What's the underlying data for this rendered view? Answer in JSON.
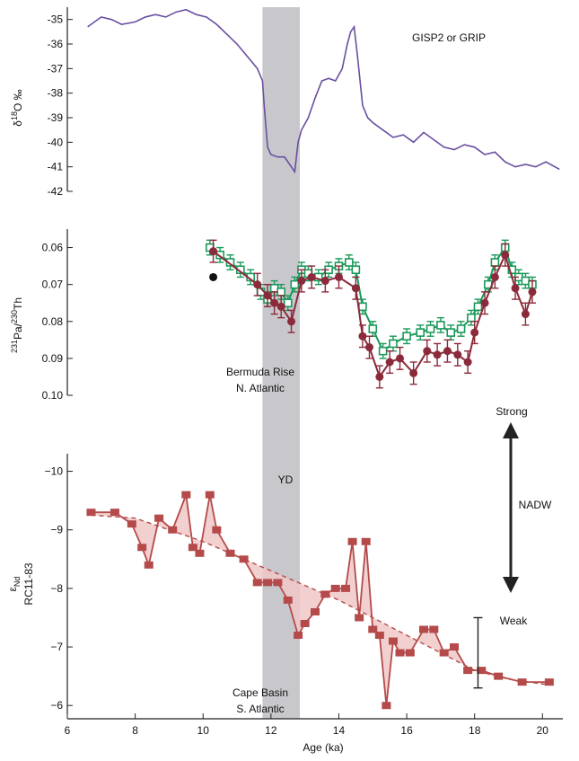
{
  "chart_data": [
    {
      "type": "line",
      "panel": "top",
      "ylabel_main": "δ",
      "ylabel_sup": "18",
      "ylabel_rest": "O ‰",
      "yticks": [
        -35,
        -36,
        -37,
        -38,
        -39,
        -40,
        -41,
        -42
      ],
      "ylim": [
        -34.5,
        -42.0
      ],
      "annotation": "GISP2 or GRIP",
      "color": "#6a4fa0",
      "series": [
        {
          "x": [
            6.6,
            6.8,
            7.0,
            7.3,
            7.6,
            8.0,
            8.3,
            8.6,
            8.9,
            9.2,
            9.5,
            9.8,
            10.1,
            10.4,
            10.7,
            11.0,
            11.3,
            11.6,
            11.75,
            11.8,
            11.9,
            12.0,
            12.2,
            12.4,
            12.6,
            12.7,
            12.8,
            12.9,
            13.1,
            13.3,
            13.5,
            13.7,
            13.9,
            14.1,
            14.25,
            14.35,
            14.45,
            14.55,
            14.7,
            14.85,
            15.0,
            15.3,
            15.6,
            15.9,
            16.2,
            16.5,
            16.8,
            17.1,
            17.4,
            17.7,
            18.0,
            18.3,
            18.6,
            18.9,
            19.2,
            19.5,
            19.8,
            20.1,
            20.5
          ],
          "y": [
            -35.3,
            -35.1,
            -34.9,
            -35.0,
            -35.2,
            -35.1,
            -34.9,
            -34.8,
            -34.9,
            -34.7,
            -34.6,
            -34.8,
            -34.9,
            -35.2,
            -35.6,
            -36.0,
            -36.5,
            -37.0,
            -37.5,
            -38.5,
            -40.2,
            -40.5,
            -40.6,
            -40.6,
            -41.0,
            -41.2,
            -40.0,
            -39.5,
            -39.0,
            -38.2,
            -37.5,
            -37.4,
            -37.5,
            -37.0,
            -36.0,
            -35.5,
            -35.3,
            -36.5,
            -38.5,
            -39.0,
            -39.2,
            -39.5,
            -39.8,
            -39.7,
            -40.0,
            -39.6,
            -39.9,
            -40.2,
            -40.3,
            -40.1,
            -40.2,
            -40.5,
            -40.4,
            -40.8,
            -41.0,
            -40.9,
            -41.0,
            -40.8,
            -41.1
          ]
        }
      ]
    },
    {
      "type": "line",
      "panel": "middle",
      "ylabel_sup1": "231",
      "ylabel_mid": "Pa/",
      "ylabel_sup2": "230",
      "ylabel_end": "Th",
      "yticks": [
        "0.06",
        "0.07",
        "0.08",
        "0.09",
        "0.10"
      ],
      "ytick_values": [
        0.06,
        0.07,
        0.08,
        0.09,
        0.1
      ],
      "ylim": [
        0.055,
        0.1
      ],
      "annotation_line1": "Bermuda Rise",
      "annotation_line2": "N. Atlantic",
      "series": [
        {
          "marker": "open-square",
          "color": "#1a9a5a",
          "x": [
            10.2,
            10.5,
            10.8,
            11.1,
            11.4,
            11.7,
            11.9,
            12.1,
            12.3,
            12.5,
            12.7,
            12.9,
            13.1,
            13.4,
            13.7,
            14.0,
            14.3,
            14.5,
            14.7,
            15.0,
            15.3,
            15.6,
            16.0,
            16.4,
            16.7,
            17.0,
            17.3,
            17.6,
            17.9,
            18.1,
            18.4,
            18.6,
            18.9,
            19.1,
            19.3,
            19.5,
            19.7
          ],
          "y": [
            0.06,
            0.062,
            0.064,
            0.066,
            0.068,
            0.072,
            0.074,
            0.071,
            0.072,
            0.075,
            0.07,
            0.066,
            0.067,
            0.068,
            0.066,
            0.065,
            0.064,
            0.066,
            0.076,
            0.082,
            0.088,
            0.086,
            0.084,
            0.083,
            0.082,
            0.081,
            0.083,
            0.082,
            0.079,
            0.076,
            0.07,
            0.064,
            0.06,
            0.066,
            0.068,
            0.069,
            0.07
          ],
          "err": 0.002
        },
        {
          "marker": "filled-circle",
          "color": "#8b2a3a",
          "x": [
            10.3,
            11.6,
            11.9,
            12.1,
            12.3,
            12.6,
            12.9,
            13.2,
            13.6,
            14.0,
            14.5,
            14.7,
            14.9,
            15.2,
            15.5,
            15.8,
            16.2,
            16.6,
            16.9,
            17.2,
            17.5,
            17.8,
            18.0,
            18.3,
            18.6,
            18.9,
            19.2,
            19.5,
            19.7
          ],
          "y": [
            0.061,
            0.07,
            0.073,
            0.075,
            0.076,
            0.08,
            0.069,
            0.068,
            0.069,
            0.068,
            0.071,
            0.084,
            0.087,
            0.095,
            0.091,
            0.09,
            0.094,
            0.088,
            0.089,
            0.088,
            0.089,
            0.091,
            0.083,
            0.075,
            0.068,
            0.062,
            0.071,
            0.078,
            0.072
          ],
          "err": 0.003
        },
        {
          "marker": "filled-circle-isolated",
          "color": "#111111",
          "x": [
            10.3
          ],
          "y": [
            0.068
          ]
        }
      ]
    },
    {
      "type": "line",
      "panel": "bottom",
      "ylabel_main": "ε",
      "ylabel_sub": "Nd",
      "ylabel_line2": "RC11-83",
      "yticks": [
        "−10",
        "−9",
        "−8",
        "−7",
        "−6"
      ],
      "ytick_values": [
        -10,
        -9,
        -8,
        -7,
        -6
      ],
      "ylim": [
        -10.3,
        -5.85
      ],
      "annotation_yd": "YD",
      "annotation_line1": "Cape Basin",
      "annotation_line2": "S. Atlantic",
      "color": "#b54a4a",
      "fill_color": "#f0c8c8",
      "series": [
        {
          "name": "",
          "x": [
            6.7,
            7.4,
            7.9,
            8.2,
            8.4,
            8.7,
            9.1,
            9.5,
            9.7,
            9.9,
            10.2,
            10.4,
            10.8,
            11.2,
            11.6,
            11.9,
            12.2,
            12.5,
            12.8,
            13.0,
            13.3,
            13.6,
            13.9,
            14.2,
            14.4,
            14.6,
            14.8,
            15.0,
            15.2,
            15.4,
            15.6,
            15.8,
            16.1,
            16.5,
            16.8,
            17.1,
            17.4,
            17.8,
            18.2,
            18.7,
            19.4,
            20.2
          ],
          "y": [
            -9.3,
            -9.3,
            -9.1,
            -8.7,
            -8.4,
            -9.2,
            -9.0,
            -9.6,
            -8.7,
            -8.6,
            -9.6,
            -9.0,
            -8.6,
            -8.5,
            -8.1,
            -8.1,
            -8.1,
            -7.8,
            -7.2,
            -7.4,
            -7.6,
            -7.9,
            -8.0,
            -8.0,
            -8.8,
            -7.5,
            -8.8,
            -7.3,
            -7.2,
            -6.0,
            -7.1,
            -6.9,
            -6.9,
            -7.3,
            -7.3,
            -6.9,
            -7.0,
            -6.6,
            -6.6,
            -6.5,
            -6.4,
            -6.4
          ]
        },
        {
          "name": "",
          "dashed": true,
          "x": [
            6.7,
            8.0,
            9.0,
            10.0,
            11.0,
            12.0,
            13.0,
            14.0,
            15.0,
            16.0,
            17.0,
            18.0,
            19.0,
            20.2
          ],
          "y": [
            -9.25,
            -9.2,
            -9.0,
            -8.8,
            -8.55,
            -8.3,
            -8.05,
            -7.8,
            -7.5,
            -7.2,
            -6.9,
            -6.6,
            -6.45,
            -6.35
          ]
        }
      ],
      "errorbar": {
        "x": 18.1,
        "y": -6.9,
        "err": 0.6
      }
    }
  ],
  "x_axis": {
    "label": "Age (ka)",
    "ticks": [
      "6",
      "8",
      "10",
      "12",
      "14",
      "16",
      "18",
      "20"
    ],
    "tick_values": [
      6,
      8,
      10,
      12,
      14,
      16,
      18,
      20
    ],
    "xlim": [
      6,
      20.6
    ]
  },
  "yd_band": {
    "x0": 11.75,
    "x1": 12.85,
    "color": "#c8c8cc"
  },
  "nadw": {
    "label": "NADW",
    "top_label": "Strong",
    "bottom_label": "Weak"
  }
}
